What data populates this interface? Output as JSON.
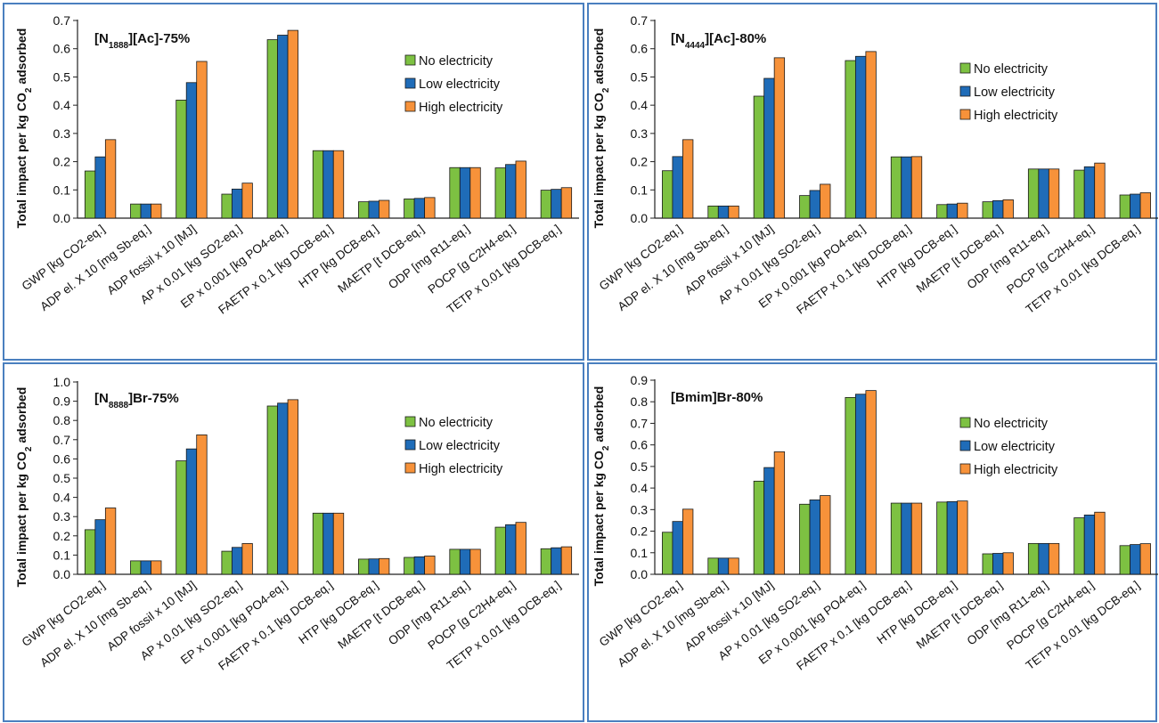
{
  "legend": [
    "No electricity",
    "Low electricity",
    "High electricity"
  ],
  "colors": {
    "series": [
      "#7dc142",
      "#1f6cb8",
      "#f7923a"
    ],
    "border": "#4a7fbf"
  },
  "ylabel_parts": [
    "Total impact per kg CO",
    "2",
    " adsorbed"
  ],
  "categories": [
    "GWP [kg CO2-eq.]",
    "ADP el. X 10 [mg Sb-eq.]",
    "ADP fossil x 10 [MJ]",
    "AP x 0.01 [kg SO2-eq.]",
    "EP x 0.001 [kg PO4-eq.]",
    "FAETP x 0.1 [kg DCB-eq.]",
    "HTP [kg DCB-eq.]",
    "MAETP [t DCB-eq.]",
    "ODP [mg R11-eq.]",
    "POCP [g C2H4-eq.]",
    "TETP x 0.01 [kg DCB-eq.]"
  ],
  "chart_data": [
    {
      "type": "bar",
      "title": "[N1888][Ac]-75%",
      "title_parts": [
        "[N",
        "1888",
        "][Ac]-75%"
      ],
      "ylim": [
        0,
        0.7
      ],
      "yticks": [
        "0.0",
        "0.1",
        "0.2",
        "0.3",
        "0.4",
        "0.5",
        "0.6",
        "0.7"
      ],
      "legend_position": "top-right",
      "series": [
        {
          "name": "No electricity",
          "values": [
            0.167,
            0.05,
            0.418,
            0.085,
            0.632,
            0.239,
            0.058,
            0.068,
            0.179,
            0.178,
            0.099
          ]
        },
        {
          "name": "Low electricity",
          "values": [
            0.217,
            0.05,
            0.48,
            0.103,
            0.648,
            0.239,
            0.06,
            0.07,
            0.179,
            0.19,
            0.102
          ]
        },
        {
          "name": "High electricity",
          "values": [
            0.278,
            0.05,
            0.555,
            0.124,
            0.665,
            0.239,
            0.063,
            0.073,
            0.179,
            0.202,
            0.108
          ]
        }
      ]
    },
    {
      "type": "bar",
      "title": "[N4444][Ac]-80%",
      "title_parts": [
        "[N",
        "4444",
        "][Ac]-80%"
      ],
      "ylim": [
        0,
        0.7
      ],
      "yticks": [
        "0.0",
        "0.1",
        "0.2",
        "0.3",
        "0.4",
        "0.5",
        "0.6",
        "0.7"
      ],
      "legend_position": "top-right",
      "series": [
        {
          "name": "No electricity",
          "values": [
            0.168,
            0.043,
            0.432,
            0.08,
            0.558,
            0.217,
            0.048,
            0.058,
            0.174,
            0.17,
            0.082
          ]
        },
        {
          "name": "Low electricity",
          "values": [
            0.218,
            0.043,
            0.495,
            0.098,
            0.573,
            0.217,
            0.05,
            0.062,
            0.174,
            0.182,
            0.085
          ]
        },
        {
          "name": "High electricity",
          "values": [
            0.278,
            0.043,
            0.568,
            0.12,
            0.59,
            0.218,
            0.053,
            0.065,
            0.174,
            0.195,
            0.09
          ]
        }
      ]
    },
    {
      "type": "bar",
      "title": "[N8888]Br-75%",
      "title_parts": [
        "[N",
        "8888",
        "]Br-75%"
      ],
      "ylim": [
        0,
        1.0
      ],
      "yticks": [
        "0.0",
        "0.1",
        "0.2",
        "0.3",
        "0.4",
        "0.5",
        "0.6",
        "0.7",
        "0.8",
        "0.9",
        "1.0"
      ],
      "legend_position": "top-right",
      "series": [
        {
          "name": "No electricity",
          "values": [
            0.232,
            0.07,
            0.59,
            0.12,
            0.875,
            0.318,
            0.079,
            0.088,
            0.13,
            0.245,
            0.133
          ]
        },
        {
          "name": "Low electricity",
          "values": [
            0.284,
            0.07,
            0.652,
            0.14,
            0.89,
            0.318,
            0.08,
            0.091,
            0.13,
            0.258,
            0.138
          ]
        },
        {
          "name": "High electricity",
          "values": [
            0.345,
            0.07,
            0.725,
            0.16,
            0.908,
            0.318,
            0.082,
            0.095,
            0.13,
            0.27,
            0.143
          ]
        }
      ]
    },
    {
      "type": "bar",
      "title": "[Bmim]Br-80%",
      "title_parts": [
        "[Bmim]Br-80%",
        "",
        ""
      ],
      "ylim": [
        0,
        0.9
      ],
      "yticks": [
        "0.0",
        "0.1",
        "0.2",
        "0.3",
        "0.4",
        "0.5",
        "0.6",
        "0.7",
        "0.8",
        "0.9"
      ],
      "legend_position": "top-right",
      "series": [
        {
          "name": "No electricity",
          "values": [
            0.195,
            0.075,
            0.432,
            0.325,
            0.82,
            0.33,
            0.335,
            0.095,
            0.143,
            0.262,
            0.133
          ]
        },
        {
          "name": "Low electricity",
          "values": [
            0.245,
            0.075,
            0.495,
            0.345,
            0.835,
            0.33,
            0.337,
            0.097,
            0.143,
            0.275,
            0.138
          ]
        },
        {
          "name": "High electricity",
          "values": [
            0.302,
            0.075,
            0.568,
            0.365,
            0.852,
            0.33,
            0.34,
            0.1,
            0.143,
            0.288,
            0.142
          ]
        }
      ]
    }
  ]
}
